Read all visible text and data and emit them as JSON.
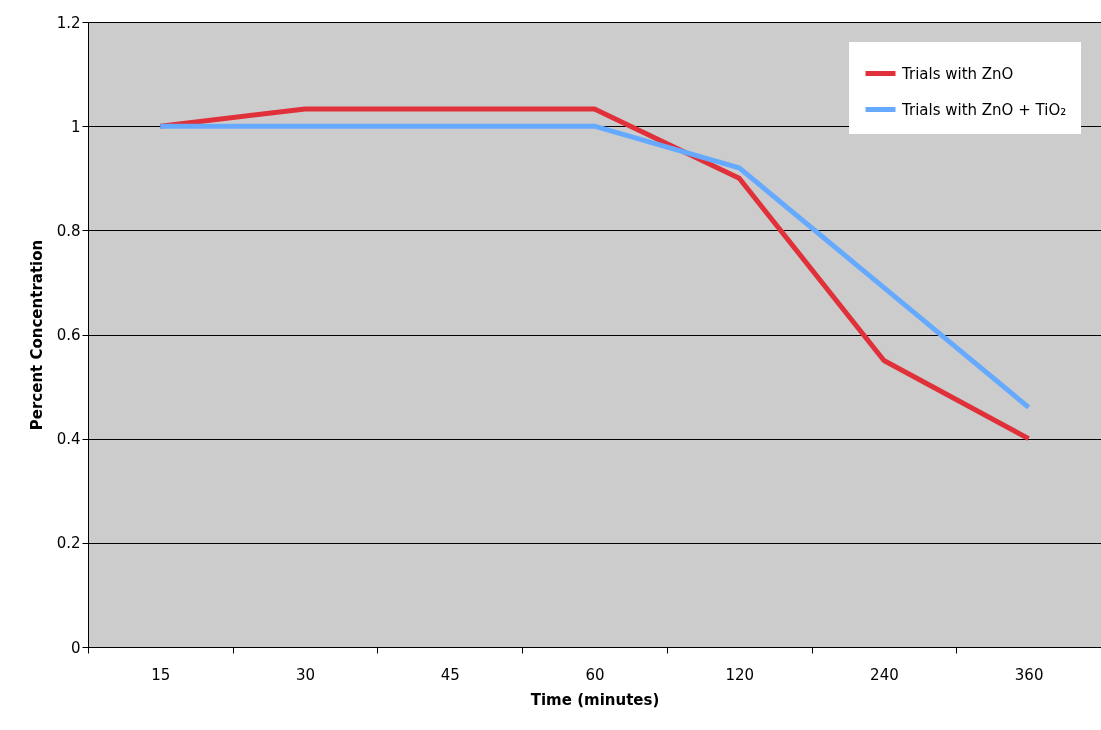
{
  "chart_data": {
    "type": "line",
    "xlabel": "Time (minutes)",
    "ylabel": "Percent Concentration",
    "categories": [
      "15",
      "30",
      "45",
      "60",
      "120",
      "240",
      "360"
    ],
    "series": [
      {
        "name": "Trials with ZnO",
        "color": "#e0313a",
        "values": [
          1.0,
          1.033,
          1.033,
          1.033,
          0.9,
          0.55,
          0.4
        ]
      },
      {
        "name": "Trials with ZnO + TiO₂",
        "color": "#66aaff",
        "values": [
          1.0,
          1.0,
          1.0,
          1.0,
          0.92,
          0.69,
          0.46
        ]
      }
    ],
    "ylim": [
      0,
      1.2
    ],
    "yticks": [
      0,
      0.2,
      0.4,
      0.6,
      0.8,
      1,
      1.2
    ],
    "grid": "y",
    "legend": "top right"
  }
}
